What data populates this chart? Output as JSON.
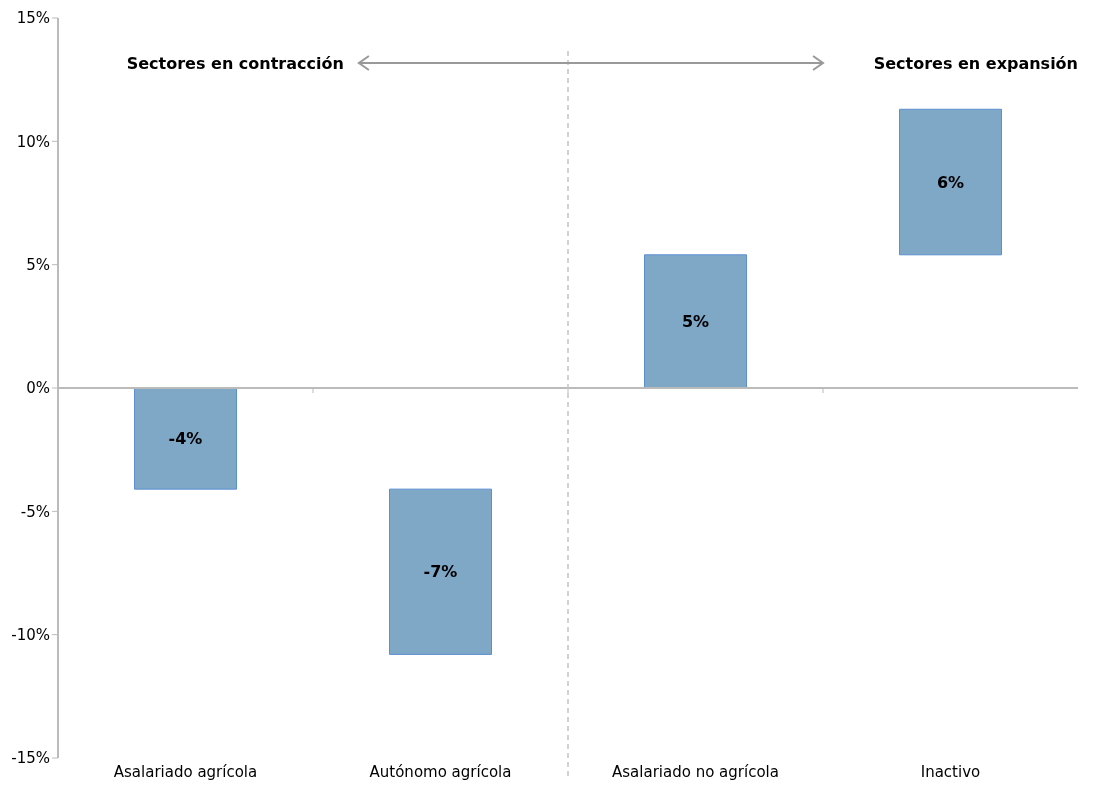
{
  "chart_data": {
    "type": "bar",
    "categories": [
      "Asalariado agrícola",
      "Autónomo agrícola",
      "Asalariado no agrícola",
      "Inactivo"
    ],
    "values": [
      -4.1,
      -6.7,
      5.4,
      5.9
    ],
    "base": [
      0,
      -4.1,
      0,
      5.4
    ],
    "color": "#7fa7c6",
    "value_labels": [
      "-4%",
      "-7%",
      "5%",
      "6%"
    ],
    "ylim": [
      -15,
      15
    ],
    "yticks": [
      {
        "value": -15,
        "label": "-15%"
      },
      {
        "value": -10,
        "label": "-10%"
      },
      {
        "value": -5,
        "label": "-5%"
      },
      {
        "value": 0,
        "label": "0%"
      },
      {
        "value": 5,
        "label": "5%"
      },
      {
        "value": 10,
        "label": "10%"
      },
      {
        "value": 15,
        "label": "15%"
      }
    ],
    "annotations": [
      "Sectores en contracción",
      "Sectores en expansión"
    ]
  }
}
